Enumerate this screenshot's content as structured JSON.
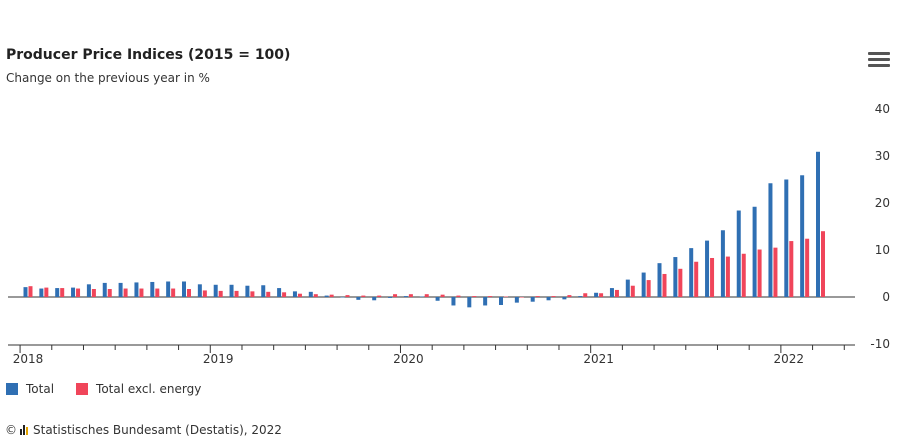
{
  "header": {
    "title": "Producer Price Indices (2015 = 100)",
    "subtitle": "Change on the previous year in %",
    "menu_icon": "hamburger-menu-icon"
  },
  "credit": {
    "prefix": "©",
    "text": "Statistisches Bundesamt (Destatis), 2022",
    "logo_icon": "destatis-logo-icon"
  },
  "colors": {
    "total": "#2f6fb3",
    "excl_energy": "#f0455a",
    "axis": "#333333",
    "tick_text": "#333333"
  },
  "chart_data": {
    "type": "bar",
    "title": "Producer Price Indices (2015 = 100)",
    "subtitle": "Change on the previous year in %",
    "x_tick_labels": [
      "2018",
      "2019",
      "2020",
      "2021",
      "2022"
    ],
    "y_tick_labels": [
      "40",
      "30",
      "20",
      "10",
      "0",
      "-10"
    ],
    "ylim": [
      -10,
      40
    ],
    "y_axis_side": "right",
    "grid": false,
    "legend_position": "bottom-left",
    "categories": [
      "2018-01",
      "2018-02",
      "2018-03",
      "2018-04",
      "2018-05",
      "2018-06",
      "2018-07",
      "2018-08",
      "2018-09",
      "2018-10",
      "2018-11",
      "2018-12",
      "2019-01",
      "2019-02",
      "2019-03",
      "2019-04",
      "2019-05",
      "2019-06",
      "2019-07",
      "2019-08",
      "2019-09",
      "2019-10",
      "2019-11",
      "2019-12",
      "2020-01",
      "2020-02",
      "2020-03",
      "2020-04",
      "2020-05",
      "2020-06",
      "2020-07",
      "2020-08",
      "2020-09",
      "2020-10",
      "2020-11",
      "2020-12",
      "2021-01",
      "2021-02",
      "2021-03",
      "2021-04",
      "2021-05",
      "2021-06",
      "2021-07",
      "2021-08",
      "2021-09",
      "2021-10",
      "2021-11",
      "2021-12",
      "2022-01",
      "2022-02",
      "2022-03"
    ],
    "series": [
      {
        "name": "Total",
        "values": [
          2.1,
          1.8,
          1.9,
          2.0,
          2.7,
          3.0,
          3.0,
          3.1,
          3.2,
          3.3,
          3.3,
          2.7,
          2.6,
          2.6,
          2.4,
          2.5,
          1.9,
          1.2,
          1.1,
          0.3,
          -0.1,
          -0.6,
          -0.7,
          -0.2,
          0.2,
          0.1,
          -0.8,
          -1.8,
          -2.2,
          -1.8,
          -1.7,
          -1.2,
          -1.0,
          -0.7,
          -0.5,
          0.2,
          0.9,
          1.9,
          3.7,
          5.2,
          7.2,
          8.5,
          10.4,
          12.0,
          14.2,
          18.4,
          19.2,
          24.2,
          25.0,
          25.9,
          30.9
        ]
      },
      {
        "name": "Total excl. energy",
        "values": [
          2.3,
          2.0,
          1.9,
          1.8,
          1.7,
          1.7,
          1.8,
          1.8,
          1.8,
          1.8,
          1.7,
          1.4,
          1.3,
          1.3,
          1.2,
          1.1,
          1.0,
          0.7,
          0.6,
          0.5,
          0.4,
          0.3,
          0.3,
          0.6,
          0.6,
          0.6,
          0.5,
          0.3,
          0.2,
          0.2,
          0.1,
          0.0,
          0.2,
          0.2,
          0.4,
          0.8,
          0.8,
          1.5,
          2.4,
          3.6,
          4.9,
          6.0,
          7.5,
          8.3,
          8.6,
          9.2,
          10.1,
          10.5,
          11.9,
          12.4,
          14.0
        ]
      }
    ]
  }
}
